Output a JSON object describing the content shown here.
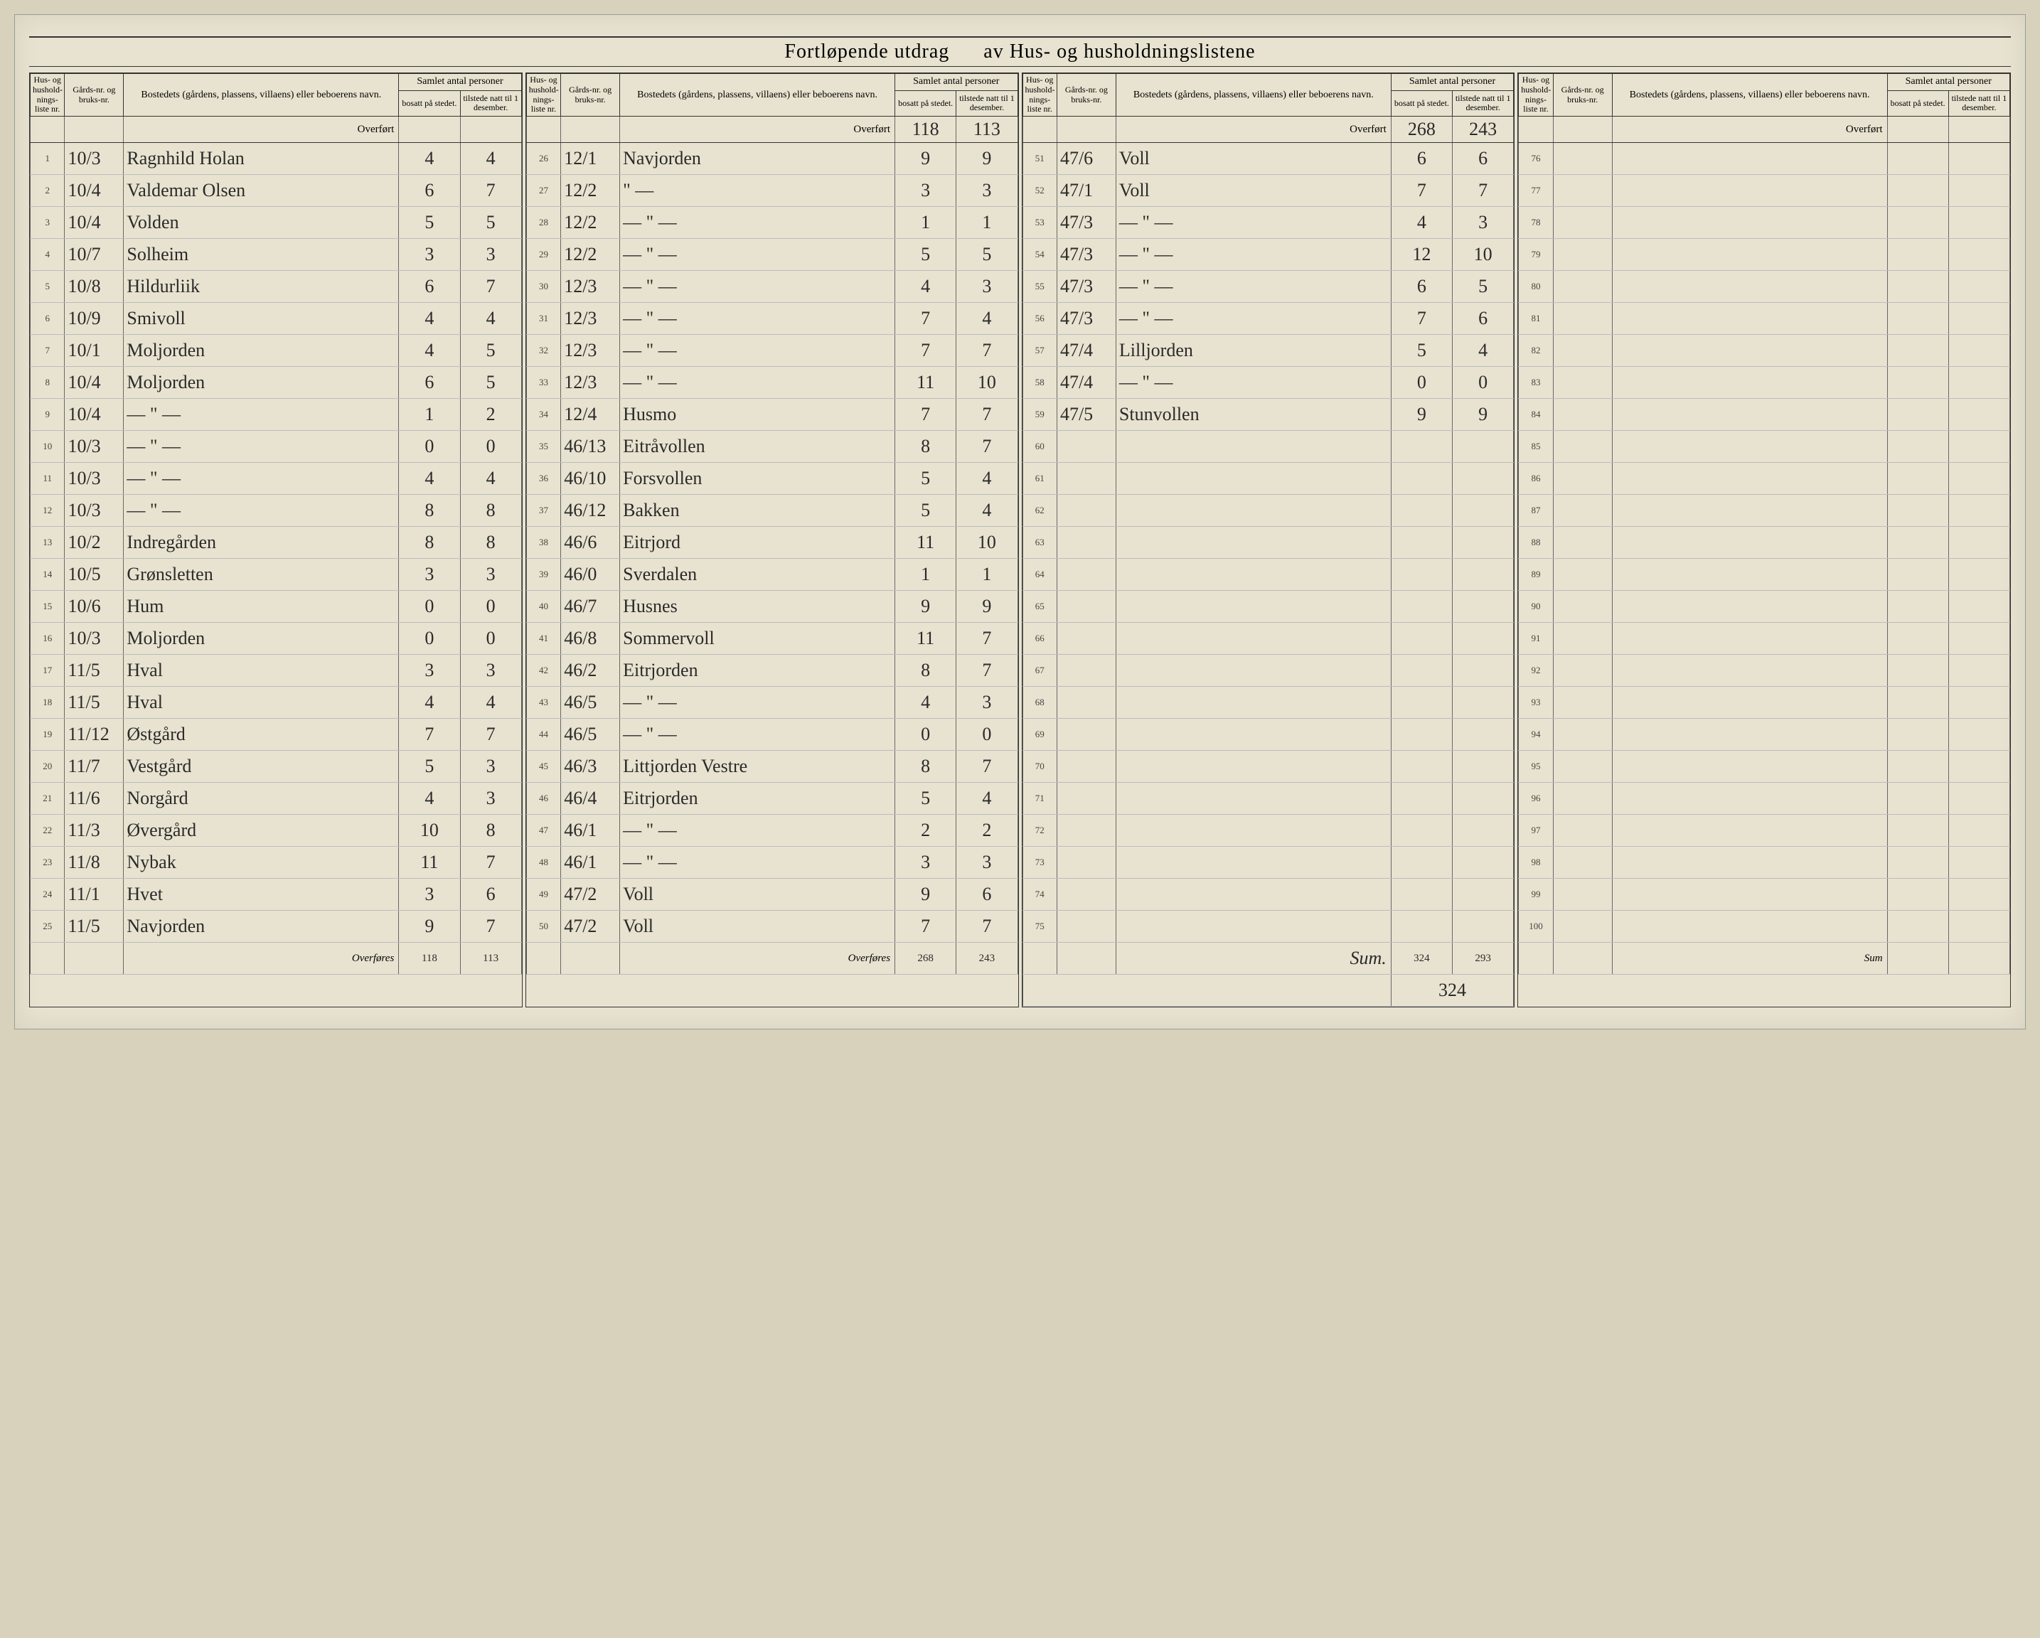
{
  "title_left": "Fortløpende utdrag",
  "title_right": "av Hus- og husholdningslistene",
  "header": {
    "hus": "Hus- og hushold-nings-liste nr.",
    "gard": "Gårds-nr. og bruks-nr.",
    "name": "Bostedets (gårdens, plassens, villaens) eller beboerens navn.",
    "samlet": "Samlet antal personer",
    "bosatt": "bosatt på stedet.",
    "tilstede": "tilstede natt til 1 desember."
  },
  "overfort_label": "Overført",
  "overfores_label": "Overføres",
  "sum_label": "Sum",
  "panels": [
    {
      "overfort": {
        "bosatt": "",
        "tilstede": ""
      },
      "rows": [
        {
          "n": "1",
          "g": "10/3",
          "name": "Ragnhild Holan",
          "b": "4",
          "t": "4"
        },
        {
          "n": "2",
          "g": "10/4",
          "name": "Valdemar Olsen",
          "b": "6",
          "t": "7"
        },
        {
          "n": "3",
          "g": "10/4",
          "name": "Volden",
          "b": "5",
          "t": "5"
        },
        {
          "n": "4",
          "g": "10/7",
          "name": "Solheim",
          "b": "3",
          "t": "3"
        },
        {
          "n": "5",
          "g": "10/8",
          "name": "Hildurliik",
          "b": "6",
          "t": "7"
        },
        {
          "n": "6",
          "g": "10/9",
          "name": "Smivoll",
          "b": "4",
          "t": "4"
        },
        {
          "n": "7",
          "g": "10/1",
          "name": "Moljorden",
          "b": "4",
          "t": "5"
        },
        {
          "n": "8",
          "g": "10/4",
          "name": "Moljorden",
          "b": "6",
          "t": "5"
        },
        {
          "n": "9",
          "g": "10/4",
          "name": "— \" —",
          "b": "1",
          "t": "2"
        },
        {
          "n": "10",
          "g": "10/3",
          "name": "— \" —",
          "b": "0",
          "t": "0"
        },
        {
          "n": "11",
          "g": "10/3",
          "name": "— \" —",
          "b": "4",
          "t": "4"
        },
        {
          "n": "12",
          "g": "10/3",
          "name": "— \" —",
          "b": "8",
          "t": "8"
        },
        {
          "n": "13",
          "g": "10/2",
          "name": "Indregården",
          "b": "8",
          "t": "8"
        },
        {
          "n": "14",
          "g": "10/5",
          "name": "Grønsletten",
          "b": "3",
          "t": "3"
        },
        {
          "n": "15",
          "g": "10/6",
          "name": "Hum",
          "b": "0",
          "t": "0"
        },
        {
          "n": "16",
          "g": "10/3",
          "name": "Moljorden",
          "b": "0",
          "t": "0"
        },
        {
          "n": "17",
          "g": "11/5",
          "name": "Hval",
          "b": "3",
          "t": "3"
        },
        {
          "n": "18",
          "g": "11/5",
          "name": "Hval",
          "b": "4",
          "t": "4"
        },
        {
          "n": "19",
          "g": "11/12",
          "name": "Østgård",
          "b": "7",
          "t": "7"
        },
        {
          "n": "20",
          "g": "11/7",
          "name": "Vestgård",
          "b": "5",
          "t": "3"
        },
        {
          "n": "21",
          "g": "11/6",
          "name": "Norgård",
          "b": "4",
          "t": "3"
        },
        {
          "n": "22",
          "g": "11/3",
          "name": "Øvergård",
          "b": "10",
          "t": "8"
        },
        {
          "n": "23",
          "g": "11/8",
          "name": "Nybak",
          "b": "11",
          "t": "7"
        },
        {
          "n": "24",
          "g": "11/1",
          "name": "Hvet",
          "b": "3",
          "t": "6"
        },
        {
          "n": "25",
          "g": "11/5",
          "name": "Navjorden",
          "b": "9",
          "t": "7"
        }
      ],
      "footer": {
        "bosatt": "118",
        "tilstede": "113"
      }
    },
    {
      "overfort": {
        "bosatt": "118",
        "tilstede": "113"
      },
      "rows": [
        {
          "n": "26",
          "g": "12/1",
          "name": "Navjorden",
          "b": "9",
          "t": "9"
        },
        {
          "n": "27",
          "g": "12/2",
          "name": "\" —",
          "b": "3",
          "t": "3"
        },
        {
          "n": "28",
          "g": "12/2",
          "name": "— \" —",
          "b": "1",
          "t": "1"
        },
        {
          "n": "29",
          "g": "12/2",
          "name": "— \" —",
          "b": "5",
          "t": "5"
        },
        {
          "n": "30",
          "g": "12/3",
          "name": "— \" —",
          "b": "4",
          "t": "3"
        },
        {
          "n": "31",
          "g": "12/3",
          "name": "— \" —",
          "b": "7",
          "t": "4"
        },
        {
          "n": "32",
          "g": "12/3",
          "name": "— \" —",
          "b": "7",
          "t": "7"
        },
        {
          "n": "33",
          "g": "12/3",
          "name": "— \" —",
          "b": "11",
          "t": "10"
        },
        {
          "n": "34",
          "g": "12/4",
          "name": "Husmo",
          "b": "7",
          "t": "7"
        },
        {
          "n": "35",
          "g": "46/13",
          "name": "Eitråvollen",
          "b": "8",
          "t": "7"
        },
        {
          "n": "36",
          "g": "46/10",
          "name": "Forsvollen",
          "b": "5",
          "t": "4"
        },
        {
          "n": "37",
          "g": "46/12",
          "name": "Bakken",
          "b": "5",
          "t": "4"
        },
        {
          "n": "38",
          "g": "46/6",
          "name": "Eitrjord",
          "b": "11",
          "t": "10"
        },
        {
          "n": "39",
          "g": "46/0",
          "name": "Sverdalen",
          "b": "1",
          "t": "1"
        },
        {
          "n": "40",
          "g": "46/7",
          "name": "Husnes",
          "b": "9",
          "t": "9"
        },
        {
          "n": "41",
          "g": "46/8",
          "name": "Sommervoll",
          "b": "11",
          "t": "7"
        },
        {
          "n": "42",
          "g": "46/2",
          "name": "Eitrjorden",
          "b": "8",
          "t": "7"
        },
        {
          "n": "43",
          "g": "46/5",
          "name": "— \" —",
          "b": "4",
          "t": "3"
        },
        {
          "n": "44",
          "g": "46/5",
          "name": "— \" —",
          "b": "0",
          "t": "0"
        },
        {
          "n": "45",
          "g": "46/3",
          "name": "Littjorden Vestre",
          "b": "8",
          "t": "7"
        },
        {
          "n": "46",
          "g": "46/4",
          "name": "Eitrjorden",
          "b": "5",
          "t": "4"
        },
        {
          "n": "47",
          "g": "46/1",
          "name": "— \" —",
          "b": "2",
          "t": "2"
        },
        {
          "n": "48",
          "g": "46/1",
          "name": "— \" —",
          "b": "3",
          "t": "3"
        },
        {
          "n": "49",
          "g": "47/2",
          "name": "Voll",
          "b": "9",
          "t": "6"
        },
        {
          "n": "50",
          "g": "47/2",
          "name": "Voll",
          "b": "7",
          "t": "7"
        }
      ],
      "footer": {
        "bosatt": "268",
        "tilstede": "243"
      }
    },
    {
      "overfort": {
        "bosatt": "268",
        "tilstede": "243"
      },
      "rows": [
        {
          "n": "51",
          "g": "47/6",
          "name": "Voll",
          "b": "6",
          "t": "6"
        },
        {
          "n": "52",
          "g": "47/1",
          "name": "Voll",
          "b": "7",
          "t": "7"
        },
        {
          "n": "53",
          "g": "47/3",
          "name": "— \" —",
          "b": "4",
          "t": "3"
        },
        {
          "n": "54",
          "g": "47/3",
          "name": "— \" —",
          "b": "12",
          "t": "10"
        },
        {
          "n": "55",
          "g": "47/3",
          "name": "— \" —",
          "b": "6",
          "t": "5"
        },
        {
          "n": "56",
          "g": "47/3",
          "name": "— \" —",
          "b": "7",
          "t": "6"
        },
        {
          "n": "57",
          "g": "47/4",
          "name": "Lilljorden",
          "b": "5",
          "t": "4"
        },
        {
          "n": "58",
          "g": "47/4",
          "name": "— \" —",
          "b": "0",
          "t": "0"
        },
        {
          "n": "59",
          "g": "47/5",
          "name": "Stunvollen",
          "b": "9",
          "t": "9"
        },
        {
          "n": "60",
          "g": "",
          "name": "",
          "b": "",
          "t": ""
        },
        {
          "n": "61",
          "g": "",
          "name": "",
          "b": "",
          "t": ""
        },
        {
          "n": "62",
          "g": "",
          "name": "",
          "b": "",
          "t": ""
        },
        {
          "n": "63",
          "g": "",
          "name": "",
          "b": "",
          "t": ""
        },
        {
          "n": "64",
          "g": "",
          "name": "",
          "b": "",
          "t": ""
        },
        {
          "n": "65",
          "g": "",
          "name": "",
          "b": "",
          "t": ""
        },
        {
          "n": "66",
          "g": "",
          "name": "",
          "b": "",
          "t": ""
        },
        {
          "n": "67",
          "g": "",
          "name": "",
          "b": "",
          "t": ""
        },
        {
          "n": "68",
          "g": "",
          "name": "",
          "b": "",
          "t": ""
        },
        {
          "n": "69",
          "g": "",
          "name": "",
          "b": "",
          "t": ""
        },
        {
          "n": "70",
          "g": "",
          "name": "",
          "b": "",
          "t": ""
        },
        {
          "n": "71",
          "g": "",
          "name": "",
          "b": "",
          "t": ""
        },
        {
          "n": "72",
          "g": "",
          "name": "",
          "b": "",
          "t": ""
        },
        {
          "n": "73",
          "g": "",
          "name": "",
          "b": "",
          "t": ""
        },
        {
          "n": "74",
          "g": "",
          "name": "",
          "b": "",
          "t": ""
        },
        {
          "n": "75",
          "g": "",
          "name": "",
          "b": "",
          "t": ""
        }
      ],
      "footer_label": "Sum.",
      "footer": {
        "bosatt": "324",
        "tilstede": "293"
      },
      "footer_note": "324"
    },
    {
      "overfort": {
        "bosatt": "",
        "tilstede": ""
      },
      "rows": [
        {
          "n": "76",
          "g": "",
          "name": "",
          "b": "",
          "t": ""
        },
        {
          "n": "77",
          "g": "",
          "name": "",
          "b": "",
          "t": ""
        },
        {
          "n": "78",
          "g": "",
          "name": "",
          "b": "",
          "t": ""
        },
        {
          "n": "79",
          "g": "",
          "name": "",
          "b": "",
          "t": ""
        },
        {
          "n": "80",
          "g": "",
          "name": "",
          "b": "",
          "t": ""
        },
        {
          "n": "81",
          "g": "",
          "name": "",
          "b": "",
          "t": ""
        },
        {
          "n": "82",
          "g": "",
          "name": "",
          "b": "",
          "t": ""
        },
        {
          "n": "83",
          "g": "",
          "name": "",
          "b": "",
          "t": ""
        },
        {
          "n": "84",
          "g": "",
          "name": "",
          "b": "",
          "t": ""
        },
        {
          "n": "85",
          "g": "",
          "name": "",
          "b": "",
          "t": ""
        },
        {
          "n": "86",
          "g": "",
          "name": "",
          "b": "",
          "t": ""
        },
        {
          "n": "87",
          "g": "",
          "name": "",
          "b": "",
          "t": ""
        },
        {
          "n": "88",
          "g": "",
          "name": "",
          "b": "",
          "t": ""
        },
        {
          "n": "89",
          "g": "",
          "name": "",
          "b": "",
          "t": ""
        },
        {
          "n": "90",
          "g": "",
          "name": "",
          "b": "",
          "t": ""
        },
        {
          "n": "91",
          "g": "",
          "name": "",
          "b": "",
          "t": ""
        },
        {
          "n": "92",
          "g": "",
          "name": "",
          "b": "",
          "t": ""
        },
        {
          "n": "93",
          "g": "",
          "name": "",
          "b": "",
          "t": ""
        },
        {
          "n": "94",
          "g": "",
          "name": "",
          "b": "",
          "t": ""
        },
        {
          "n": "95",
          "g": "",
          "name": "",
          "b": "",
          "t": ""
        },
        {
          "n": "96",
          "g": "",
          "name": "",
          "b": "",
          "t": ""
        },
        {
          "n": "97",
          "g": "",
          "name": "",
          "b": "",
          "t": ""
        },
        {
          "n": "98",
          "g": "",
          "name": "",
          "b": "",
          "t": ""
        },
        {
          "n": "99",
          "g": "",
          "name": "",
          "b": "",
          "t": ""
        },
        {
          "n": "100",
          "g": "",
          "name": "",
          "b": "",
          "t": ""
        }
      ],
      "footer": {
        "bosatt": "",
        "tilstede": ""
      }
    }
  ]
}
